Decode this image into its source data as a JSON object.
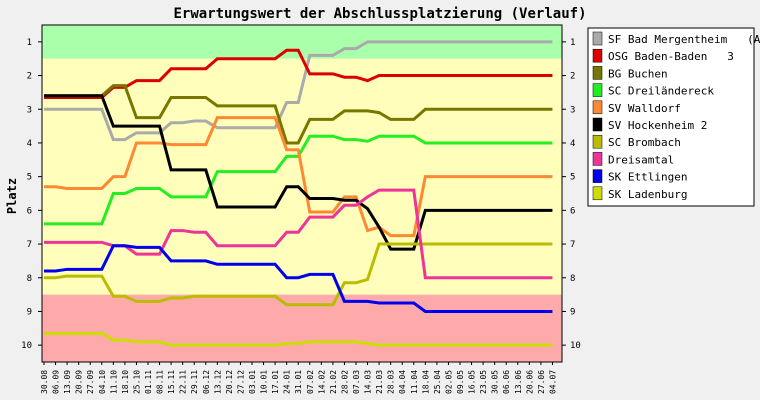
{
  "chart_data": {
    "type": "line",
    "title": "Erwartungswert der Abschlussplatzierung (Verlauf)",
    "ylabel": "Platz",
    "xlabel": "",
    "ylim": [
      0.5,
      10.5
    ],
    "y_ticks": [
      1,
      2,
      3,
      4,
      5,
      6,
      7,
      8,
      9,
      10
    ],
    "y_inverted": true,
    "zones": [
      {
        "from": 0.5,
        "to": 1.5,
        "color": "#aaffaa"
      },
      {
        "from": 1.5,
        "to": 8.5,
        "color": "#ffffbb"
      },
      {
        "from": 8.5,
        "to": 10.5,
        "color": "#ffaaaa"
      }
    ],
    "x": [
      "30.08",
      "06.09",
      "13.09",
      "20.09",
      "27.09",
      "04.10",
      "11.10",
      "18.10",
      "25.10",
      "01.11",
      "08.11",
      "15.11",
      "22.11",
      "29.11",
      "06.12",
      "13.12",
      "20.12",
      "27.12",
      "03.01",
      "10.01",
      "17.01",
      "24.01",
      "31.01",
      "07.02",
      "14.02",
      "21.02",
      "28.02",
      "07.03",
      "14.03",
      "21.03",
      "28.03",
      "04.04",
      "11.04",
      "18.04",
      "25.04",
      "02.05",
      "09.05",
      "16.05",
      "23.05",
      "30.05",
      "06.06",
      "13.06",
      "20.06",
      "27.06",
      "04.07"
    ],
    "legend_position": "right",
    "series": [
      {
        "name": "SF Bad Mergentheim   (A)",
        "color": "#aaaaaa",
        "values": [
          3.0,
          3.0,
          3.0,
          3.0,
          3.0,
          3.0,
          3.9,
          3.9,
          3.7,
          3.7,
          3.7,
          3.4,
          3.4,
          3.35,
          3.35,
          3.55,
          3.55,
          3.55,
          3.55,
          3.55,
          3.55,
          2.8,
          2.8,
          1.4,
          1.4,
          1.4,
          1.2,
          1.2,
          1.0,
          1.0,
          1.0,
          1.0,
          1.0,
          1.0,
          1.0,
          1.0,
          1.0,
          1.0,
          1.0,
          1.0,
          1.0,
          1.0,
          1.0,
          1.0,
          1.0
        ]
      },
      {
        "name": "OSG Baden-Baden   3",
        "color": "#dd0000",
        "values": [
          2.65,
          2.65,
          2.65,
          2.65,
          2.65,
          2.65,
          2.35,
          2.35,
          2.15,
          2.15,
          2.15,
          1.8,
          1.8,
          1.8,
          1.8,
          1.5,
          1.5,
          1.5,
          1.5,
          1.5,
          1.5,
          1.25,
          1.25,
          1.95,
          1.95,
          1.95,
          2.05,
          2.05,
          2.15,
          2.0,
          2.0,
          2.0,
          2.0,
          2.0,
          2.0,
          2.0,
          2.0,
          2.0,
          2.0,
          2.0,
          2.0,
          2.0,
          2.0,
          2.0,
          2.0
        ]
      },
      {
        "name": "BG Buchen",
        "color": "#777700",
        "values": [
          2.6,
          2.6,
          2.6,
          2.6,
          2.6,
          2.6,
          2.3,
          2.3,
          3.25,
          3.25,
          3.25,
          2.65,
          2.65,
          2.65,
          2.65,
          2.9,
          2.9,
          2.9,
          2.9,
          2.9,
          2.9,
          4.0,
          4.0,
          3.3,
          3.3,
          3.3,
          3.05,
          3.05,
          3.05,
          3.1,
          3.3,
          3.3,
          3.3,
          3.0,
          3.0,
          3.0,
          3.0,
          3.0,
          3.0,
          3.0,
          3.0,
          3.0,
          3.0,
          3.0,
          3.0
        ]
      },
      {
        "name": "SC Dreiländereck",
        "color": "#22ee22",
        "values": [
          6.4,
          6.4,
          6.4,
          6.4,
          6.4,
          6.4,
          5.5,
          5.5,
          5.35,
          5.35,
          5.35,
          5.6,
          5.6,
          5.6,
          5.6,
          4.85,
          4.85,
          4.85,
          4.85,
          4.85,
          4.85,
          4.4,
          4.4,
          3.8,
          3.8,
          3.8,
          3.9,
          3.9,
          3.95,
          3.8,
          3.8,
          3.8,
          3.8,
          4.0,
          4.0,
          4.0,
          4.0,
          4.0,
          4.0,
          4.0,
          4.0,
          4.0,
          4.0,
          4.0,
          4.0
        ]
      },
      {
        "name": "SV Walldorf",
        "color": "#ff8833",
        "values": [
          5.3,
          5.3,
          5.35,
          5.35,
          5.35,
          5.35,
          5.0,
          5.0,
          4.0,
          4.0,
          4.0,
          4.05,
          4.05,
          4.05,
          4.05,
          3.25,
          3.25,
          3.25,
          3.25,
          3.25,
          3.25,
          4.2,
          4.2,
          6.05,
          6.05,
          6.05,
          5.6,
          5.6,
          6.6,
          6.5,
          6.75,
          6.75,
          6.75,
          5.0,
          5.0,
          5.0,
          5.0,
          5.0,
          5.0,
          5.0,
          5.0,
          5.0,
          5.0,
          5.0,
          5.0
        ]
      },
      {
        "name": "SV Hockenheim 2",
        "color": "#000000",
        "values": [
          2.6,
          2.6,
          2.6,
          2.6,
          2.6,
          2.6,
          3.5,
          3.5,
          3.5,
          3.5,
          3.5,
          4.8,
          4.8,
          4.8,
          4.8,
          5.9,
          5.9,
          5.9,
          5.9,
          5.9,
          5.9,
          5.3,
          5.3,
          5.65,
          5.65,
          5.65,
          5.7,
          5.7,
          5.95,
          6.5,
          7.15,
          7.15,
          7.15,
          6.0,
          6.0,
          6.0,
          6.0,
          6.0,
          6.0,
          6.0,
          6.0,
          6.0,
          6.0,
          6.0,
          6.0
        ]
      },
      {
        "name": "SC Brombach",
        "color": "#bbbb00",
        "values": [
          8.0,
          8.0,
          7.95,
          7.95,
          7.95,
          7.95,
          8.55,
          8.55,
          8.7,
          8.7,
          8.7,
          8.6,
          8.6,
          8.55,
          8.55,
          8.55,
          8.55,
          8.55,
          8.55,
          8.55,
          8.55,
          8.8,
          8.8,
          8.8,
          8.8,
          8.8,
          8.15,
          8.15,
          8.05,
          7.0,
          7.0,
          7.0,
          7.0,
          7.0,
          7.0,
          7.0,
          7.0,
          7.0,
          7.0,
          7.0,
          7.0,
          7.0,
          7.0,
          7.0,
          7.0
        ]
      },
      {
        "name": "Dreisamtal",
        "color": "#ee3399",
        "values": [
          6.95,
          6.95,
          6.95,
          6.95,
          6.95,
          6.95,
          7.05,
          7.05,
          7.3,
          7.3,
          7.3,
          6.6,
          6.6,
          6.65,
          6.65,
          7.05,
          7.05,
          7.05,
          7.05,
          7.05,
          7.05,
          6.65,
          6.65,
          6.2,
          6.2,
          6.2,
          5.85,
          5.85,
          5.6,
          5.4,
          5.4,
          5.4,
          5.4,
          8.0,
          8.0,
          8.0,
          8.0,
          8.0,
          8.0,
          8.0,
          8.0,
          8.0,
          8.0,
          8.0,
          8.0
        ]
      },
      {
        "name": "SK Ettlingen",
        "color": "#0000ee",
        "values": [
          7.8,
          7.8,
          7.75,
          7.75,
          7.75,
          7.75,
          7.05,
          7.05,
          7.1,
          7.1,
          7.1,
          7.5,
          7.5,
          7.5,
          7.5,
          7.6,
          7.6,
          7.6,
          7.6,
          7.6,
          7.6,
          8.0,
          8.0,
          7.9,
          7.9,
          7.9,
          8.7,
          8.7,
          8.7,
          8.75,
          8.75,
          8.75,
          8.75,
          9.0,
          9.0,
          9.0,
          9.0,
          9.0,
          9.0,
          9.0,
          9.0,
          9.0,
          9.0,
          9.0,
          9.0
        ]
      },
      {
        "name": "SK Ladenburg",
        "color": "#ccdd00",
        "values": [
          9.65,
          9.65,
          9.65,
          9.65,
          9.65,
          9.65,
          9.85,
          9.85,
          9.9,
          9.9,
          9.9,
          10.0,
          10.0,
          10.0,
          10.0,
          10.0,
          10.0,
          10.0,
          10.0,
          10.0,
          10.0,
          9.95,
          9.95,
          9.9,
          9.9,
          9.9,
          9.9,
          9.9,
          9.95,
          10.0,
          10.0,
          10.0,
          10.0,
          10.0,
          10.0,
          10.0,
          10.0,
          10.0,
          10.0,
          10.0,
          10.0,
          10.0,
          10.0,
          10.0,
          10.0
        ]
      }
    ]
  }
}
